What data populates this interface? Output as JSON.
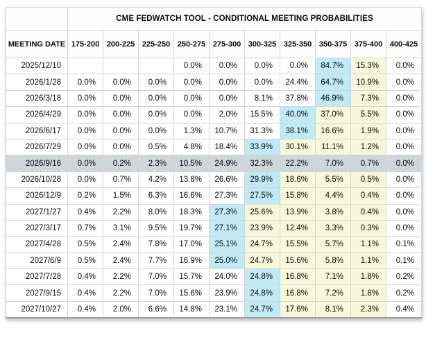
{
  "header": {
    "title": "CME FEDWATCH TOOL - CONDITIONAL MEETING PROBABILITIES",
    "date_column": "MEETING DATE",
    "range_columns": [
      "175-200",
      "200-225",
      "225-250",
      "250-275",
      "275-300",
      "300-325",
      "325-350",
      "350-375",
      "375-400",
      "400-425"
    ]
  },
  "rows": [
    {
      "date": "2025/12/10",
      "selected": false,
      "values": [
        "",
        "",
        "",
        "0.0%",
        "0.0%",
        "0.0%",
        "0.0%",
        "84.7%",
        "15.3%",
        "0.0%"
      ],
      "highlights": [
        "",
        "",
        "",
        "",
        "",
        "",
        "",
        "blue",
        "yellow",
        ""
      ]
    },
    {
      "date": "2026/1/28",
      "selected": false,
      "values": [
        "0.0%",
        "0.0%",
        "0.0%",
        "0.0%",
        "0.0%",
        "0.0%",
        "24.4%",
        "64.7%",
        "10.9%",
        "0.0%"
      ],
      "highlights": [
        "",
        "",
        "",
        "",
        "",
        "",
        "",
        "blue",
        "yellow",
        ""
      ]
    },
    {
      "date": "2026/3/18",
      "selected": false,
      "values": [
        "0.0%",
        "0.0%",
        "0.0%",
        "0.0%",
        "0.0%",
        "8.1%",
        "37.8%",
        "46.9%",
        "7.3%",
        "0.0%"
      ],
      "highlights": [
        "",
        "",
        "",
        "",
        "",
        "",
        "",
        "blue",
        "yellow",
        ""
      ]
    },
    {
      "date": "2026/4/29",
      "selected": false,
      "values": [
        "0.0%",
        "0.0%",
        "0.0%",
        "0.0%",
        "2.0%",
        "15.5%",
        "40.0%",
        "37.0%",
        "5.5%",
        "0.0%"
      ],
      "highlights": [
        "",
        "",
        "",
        "",
        "",
        "",
        "blue",
        "yellow",
        "yellow",
        ""
      ]
    },
    {
      "date": "2026/6/17",
      "selected": false,
      "values": [
        "0.0%",
        "0.0%",
        "0.0%",
        "1.3%",
        "10.7%",
        "31.3%",
        "38.1%",
        "16.6%",
        "1.9%",
        "0.0%"
      ],
      "highlights": [
        "",
        "",
        "",
        "",
        "",
        "",
        "blue",
        "yellow",
        "yellow",
        ""
      ]
    },
    {
      "date": "2026/7/29",
      "selected": false,
      "values": [
        "0.0%",
        "0.0%",
        "0.5%",
        "4.8%",
        "18.4%",
        "33.9%",
        "30.1%",
        "11.1%",
        "1.2%",
        "0.0%"
      ],
      "highlights": [
        "",
        "",
        "",
        "",
        "",
        "blue",
        "yellow",
        "yellow",
        "yellow",
        ""
      ]
    },
    {
      "date": "2026/9/16",
      "selected": true,
      "values": [
        "0.0%",
        "0.2%",
        "2.3%",
        "10.5%",
        "24.9%",
        "32.3%",
        "22.2%",
        "7.0%",
        "0.7%",
        "0.0%"
      ],
      "highlights": [
        "",
        "",
        "",
        "",
        "",
        "",
        "",
        "",
        "",
        ""
      ]
    },
    {
      "date": "2026/10/28",
      "selected": false,
      "values": [
        "0.0%",
        "0.7%",
        "4.2%",
        "13.8%",
        "26.6%",
        "29.9%",
        "18.6%",
        "5.5%",
        "0.5%",
        "0.0%"
      ],
      "highlights": [
        "",
        "",
        "",
        "",
        "",
        "blue",
        "yellow",
        "yellow",
        "yellow",
        ""
      ]
    },
    {
      "date": "2026/12/9",
      "selected": false,
      "values": [
        "0.2%",
        "1.5%",
        "6.3%",
        "16.6%",
        "27.3%",
        "27.5%",
        "15.8%",
        "4.4%",
        "0.4%",
        "0.0%"
      ],
      "highlights": [
        "",
        "",
        "",
        "",
        "",
        "blue",
        "yellow",
        "yellow",
        "yellow",
        ""
      ]
    },
    {
      "date": "2027/1/27",
      "selected": false,
      "values": [
        "0.4%",
        "2.2%",
        "8.0%",
        "18.3%",
        "27.3%",
        "25.6%",
        "13.9%",
        "3.8%",
        "0.4%",
        "0.0%"
      ],
      "highlights": [
        "",
        "",
        "",
        "",
        "blue",
        "yellow",
        "yellow",
        "yellow",
        "yellow",
        ""
      ]
    },
    {
      "date": "2027/3/17",
      "selected": false,
      "values": [
        "0.7%",
        "3.1%",
        "9.5%",
        "19.7%",
        "27.1%",
        "23.9%",
        "12.4%",
        "3.3%",
        "0.3%",
        "0.0%"
      ],
      "highlights": [
        "",
        "",
        "",
        "",
        "blue",
        "yellow",
        "yellow",
        "yellow",
        "yellow",
        ""
      ]
    },
    {
      "date": "2027/4/28",
      "selected": false,
      "values": [
        "0.5%",
        "2.4%",
        "7.8%",
        "17.0%",
        "25.1%",
        "24.7%",
        "15.5%",
        "5.7%",
        "1.1%",
        "0.1%"
      ],
      "highlights": [
        "",
        "",
        "",
        "",
        "blue",
        "yellow",
        "yellow",
        "yellow",
        "yellow",
        ""
      ]
    },
    {
      "date": "2027/6/9",
      "selected": false,
      "values": [
        "0.5%",
        "2.4%",
        "7.7%",
        "16.9%",
        "25.0%",
        "24.7%",
        "15.6%",
        "5.8%",
        "1.1%",
        "0.1%"
      ],
      "highlights": [
        "",
        "",
        "",
        "",
        "blue",
        "yellow",
        "yellow",
        "yellow",
        "yellow",
        ""
      ]
    },
    {
      "date": "2027/7/28",
      "selected": false,
      "values": [
        "0.4%",
        "2.2%",
        "7.0%",
        "15.7%",
        "24.0%",
        "24.8%",
        "16.8%",
        "7.1%",
        "1.8%",
        "0.2%"
      ],
      "highlights": [
        "",
        "",
        "",
        "",
        "",
        "blue",
        "yellow",
        "yellow",
        "yellow",
        ""
      ]
    },
    {
      "date": "2027/9/15",
      "selected": false,
      "values": [
        "0.4%",
        "2.2%",
        "7.0%",
        "15.6%",
        "23.9%",
        "24.8%",
        "16.8%",
        "7.2%",
        "1.8%",
        "0.2%"
      ],
      "highlights": [
        "",
        "",
        "",
        "",
        "",
        "blue",
        "yellow",
        "yellow",
        "yellow",
        ""
      ]
    },
    {
      "date": "2027/10/27",
      "selected": false,
      "values": [
        "0.4%",
        "2.0%",
        "6.6%",
        "14.8%",
        "23.1%",
        "24.7%",
        "17.6%",
        "8.1%",
        "2.3%",
        "0.4%"
      ],
      "highlights": [
        "",
        "",
        "",
        "",
        "",
        "blue",
        "yellow",
        "yellow",
        "yellow",
        ""
      ]
    }
  ],
  "colors": {
    "highest_probability_cell": "#bfeaf6",
    "tail_probability_cell": "#f7f7d9",
    "selected_row": "#ccd6db"
  }
}
